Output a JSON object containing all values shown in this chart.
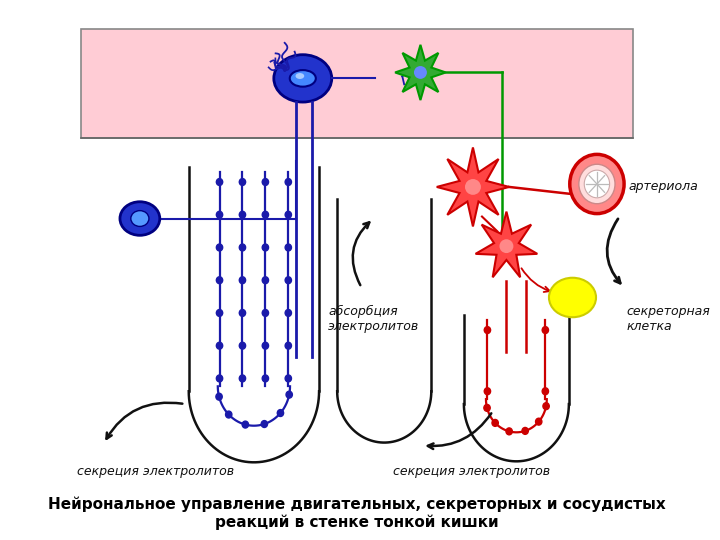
{
  "title_line1": "Нейрональное управление двигательных, секреторных и сосудистых",
  "title_line2": "реакций в стенке тонкой кишки",
  "bg_color": "#ffffff",
  "pink_band_color": "#ffccd5",
  "blue_color": "#1a1aaa",
  "blue_fill": "#2233cc",
  "blue_dark": "#000080",
  "green_color": "#009900",
  "green_fill": "#33aa33",
  "red_color": "#cc0000",
  "red_fill": "#ff4444",
  "black": "#111111",
  "label_секреция_left": "секреция электролитов",
  "label_секреция_right": "секреция электролитов",
  "label_абсорбция": "абсорбция\nэлектролитов",
  "label_артериола": "артериола",
  "label_секреторная": "секреторная\nклетка"
}
